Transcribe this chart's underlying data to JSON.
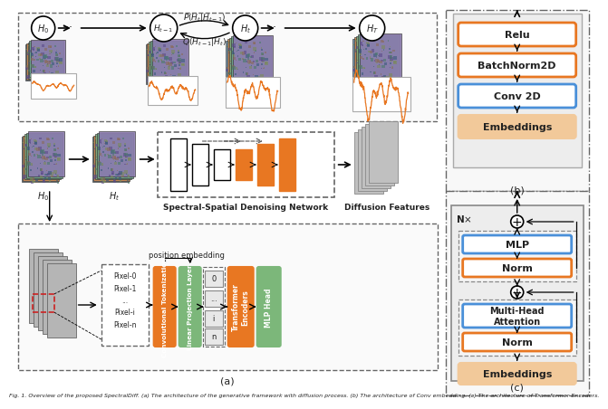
{
  "orange_color": "#E87722",
  "orange_embed": "#F2C99A",
  "green_color": "#7CB77A",
  "blue_color": "#4A90D9",
  "gray_light": "#D3D3D3",
  "white_color": "#FFFFFF",
  "bg_color": "#FFFFFF",
  "dashed_border": "#666666",
  "text_color": "#222222",
  "red_dashed": "#CC2222",
  "caption": "Fig. 1. Overview of the proposed SpectralDiff. (a) The architecture of the generative framework with diffusion process. (b) The architecture of Conv embedding. (c) The architecture of Transformer Encoders."
}
